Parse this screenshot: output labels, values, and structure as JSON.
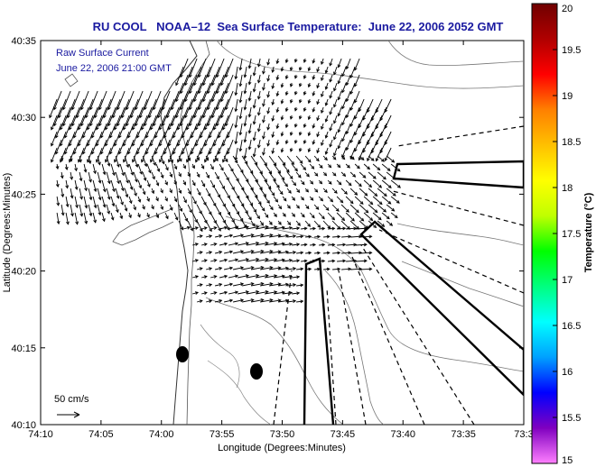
{
  "title": "RU COOL   NOAA–12  Sea Surface Temperature:  June 22, 2006 2052 GMT",
  "legend": {
    "line1": "Raw Surface Current",
    "line2": "June 22, 2006 21:00 GMT",
    "scale_label": "50 cm/s"
  },
  "axes": {
    "xlabel": "Longitude (Degrees:Minutes)",
    "ylabel": "Latitude (Degrees:Minutes)",
    "xticks": [
      "74:10",
      "74:05",
      "74:00",
      "73:55",
      "73:50",
      "73:45",
      "73:40",
      "73:35",
      "73:3"
    ],
    "yticks": [
      "40:35",
      "40:30",
      "40:25",
      "40:20",
      "40:15",
      "40:10"
    ]
  },
  "colorbar": {
    "label": "Temperature (°C)",
    "ticks": [
      "20",
      "19.5",
      "19",
      "18.5",
      "18",
      "17.5",
      "17",
      "16.5",
      "16",
      "15.5",
      "15"
    ],
    "colors": [
      "#ff80ff",
      "#8000c0",
      "#0000ff",
      "#00a0ff",
      "#00ffff",
      "#00ff80",
      "#00ff00",
      "#c0ff00",
      "#ffff00",
      "#ffc000",
      "#ff8000",
      "#ff0000",
      "#b00000",
      "#700000"
    ]
  }
}
